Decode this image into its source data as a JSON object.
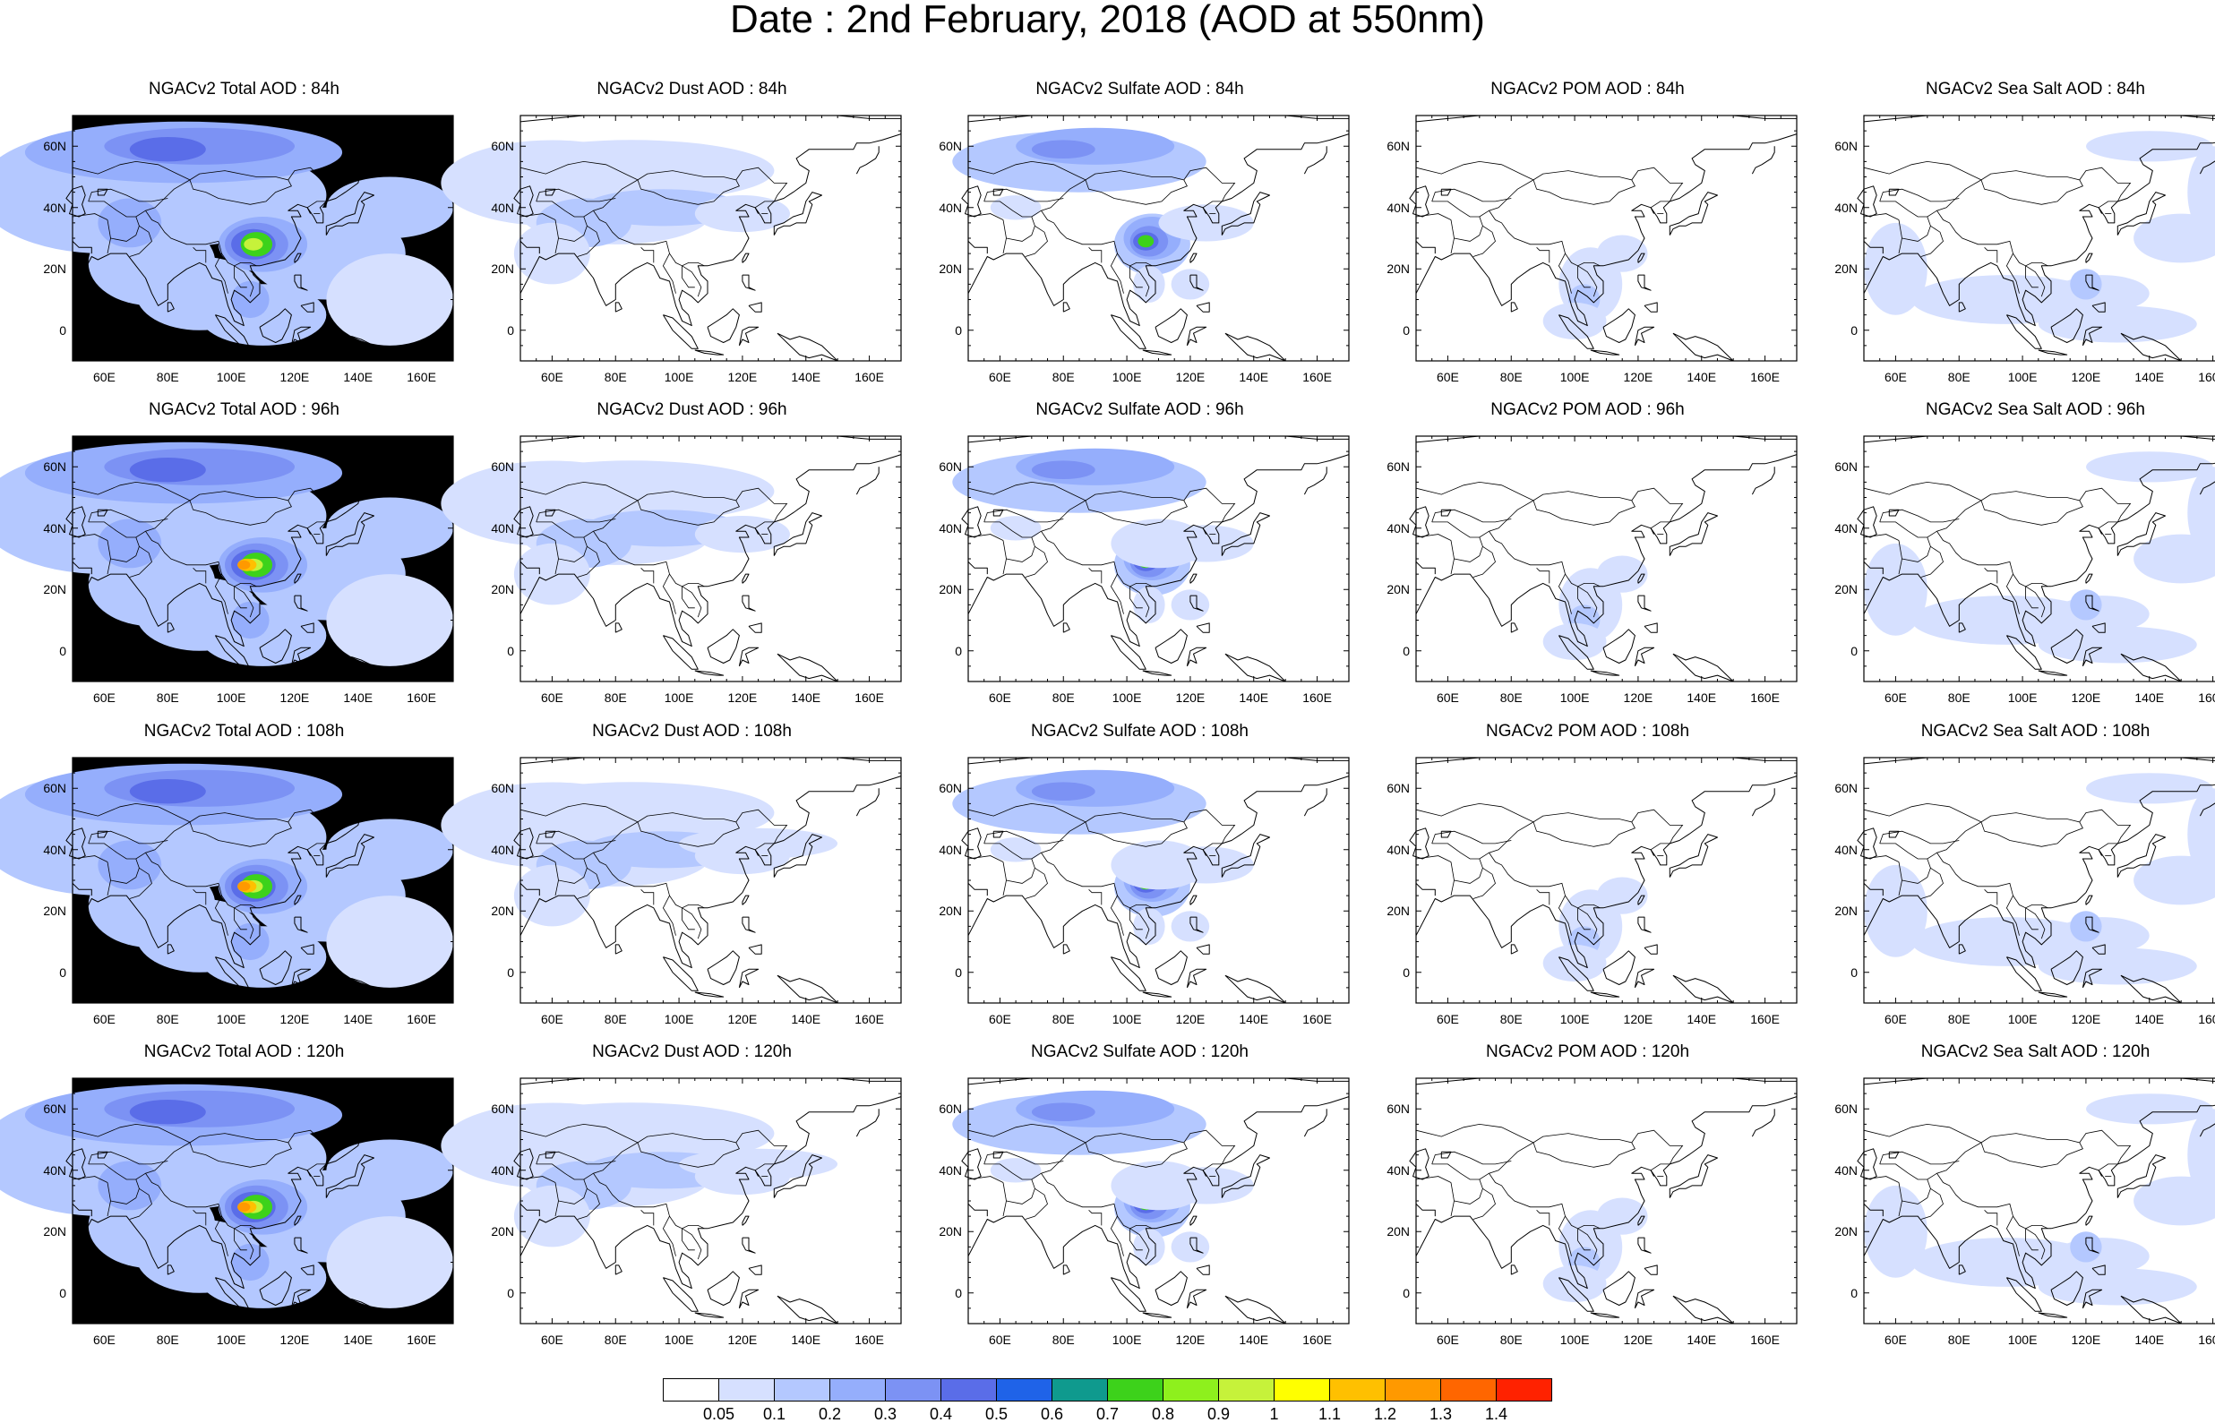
{
  "title": "Date : 2nd February, 2018 (AOD at 550nm)",
  "rows": [
    {
      "hour": "84h",
      "titles": [
        "NGACv2 Total AOD : 84h",
        "NGACv2 Dust AOD : 84h",
        "NGACv2 Sulfate AOD : 84h",
        "NGACv2 POM AOD : 84h",
        "NGACv2 Sea Salt AOD : 84h"
      ]
    },
    {
      "hour": "96h",
      "titles": [
        "NGACv2 Total AOD : 96h",
        "NGACv2 Dust AOD : 96h",
        "NGACv2 Sulfate AOD : 96h",
        "NGACv2 POM AOD : 96h",
        "NGACv2 Sea Salt AOD : 96h"
      ]
    },
    {
      "hour": "108h",
      "titles": [
        "NGACv2 Total AOD : 108h",
        "NGACv2 Dust AOD : 108h",
        "NGACv2 Sulfate AOD : 108h",
        "NGACv2 POM AOD : 108h",
        "NGACv2 Sea Salt AOD : 108h"
      ]
    },
    {
      "hour": "120h",
      "titles": [
        "NGACv2 Total AOD : 120h",
        "NGACv2 Dust AOD : 120h",
        "NGACv2 Sulfate AOD : 120h",
        "NGACv2 POM AOD : 120h",
        "NGACv2 Sea Salt  AOD : 120h"
      ]
    }
  ],
  "map_extent": {
    "lon": [
      50,
      170
    ],
    "lat": [
      -10,
      70
    ]
  },
  "lat_ticks": [
    "60N",
    "40N",
    "20N",
    "0"
  ],
  "lat_tick_values": [
    60,
    40,
    20,
    0
  ],
  "lon_ticks": [
    "60E",
    "80E",
    "100E",
    "120E",
    "140E",
    "160E"
  ],
  "lon_tick_values": [
    60,
    80,
    100,
    120,
    140,
    160
  ],
  "colorbar": {
    "levels": [
      "0.05",
      "0.1",
      "0.2",
      "0.3",
      "0.4",
      "0.5",
      "0.6",
      "0.7",
      "0.8",
      "0.9",
      "1",
      "1.1",
      "1.2",
      "1.3",
      "1.4"
    ],
    "colors": [
      "#ffffff",
      "#d6e0ff",
      "#b4c8ff",
      "#95aefc",
      "#7c92f4",
      "#5a6de8",
      "#1f63e8",
      "#0f9a8e",
      "#3dd21b",
      "#8ef01d",
      "#c6f23a",
      "#ffff00",
      "#ffc000",
      "#ff9900",
      "#ff6600",
      "#ff2200"
    ]
  },
  "species": [
    "Total",
    "Dust",
    "Sulfate",
    "POM",
    "Sea Salt"
  ]
}
